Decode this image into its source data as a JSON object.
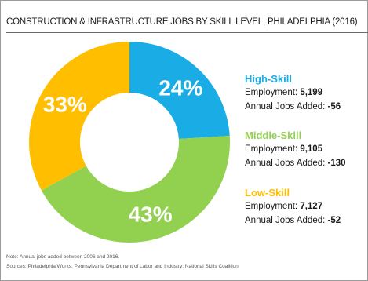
{
  "chart_data": {
    "type": "pie",
    "title": "CONSTRUCTION & INFRASTRUCTURE JOBS BY SKILL LEVEL, PHILADELPHIA (2016)",
    "categories": [
      "High-Skill",
      "Middle-Skill",
      "Low-Skill"
    ],
    "values": [
      24,
      43,
      33
    ],
    "value_labels": [
      "24%",
      "43%",
      "33%"
    ],
    "colors": [
      "#1aace4",
      "#92d050",
      "#ffbf00"
    ],
    "donut": true,
    "legend": [
      {
        "name": "High-Skill",
        "employment_label": "Employment:",
        "employment": "5,199",
        "jobs_label": "Annual Jobs Added:",
        "jobs_added": "-56",
        "color": "#1aace4"
      },
      {
        "name": "Middle-Skill",
        "employment_label": "Employment:",
        "employment": "9,105",
        "jobs_label": "Annual Jobs Added:",
        "jobs_added": "-130",
        "color": "#92d050"
      },
      {
        "name": "Low-Skill",
        "employment_label": "Employment:",
        "employment": "7,127",
        "jobs_label": "Annual Jobs Added:",
        "jobs_added": "-52",
        "color": "#ffbf00"
      }
    ],
    "legend_position": "right"
  },
  "footer": {
    "note": "Note: Annual jobs added between 2006 and 2016.",
    "sources": "Sources: Philadelphia Works; Pennsylvania Department of Labor and Industry; National Skills Coalition"
  }
}
